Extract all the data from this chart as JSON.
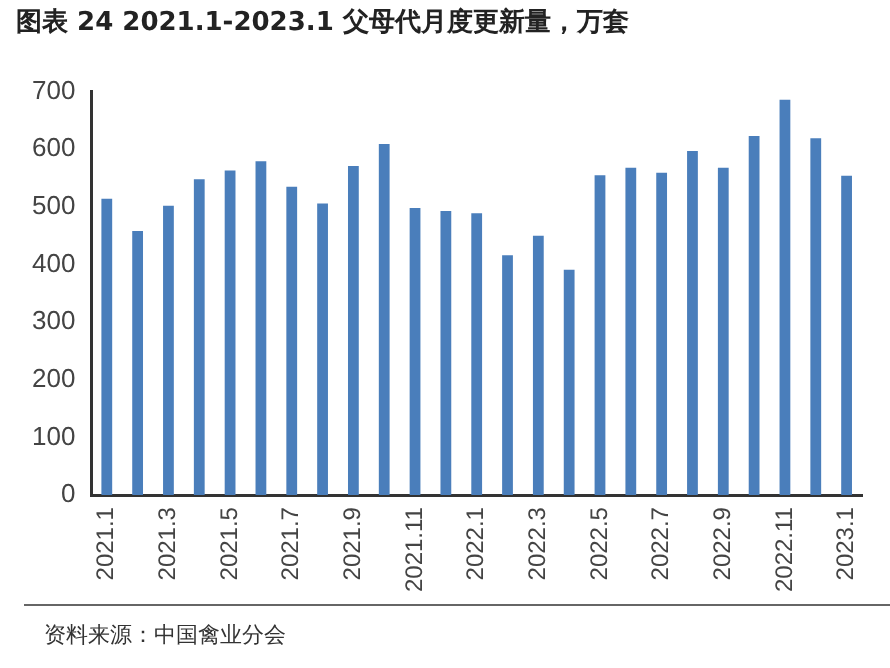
{
  "chart_data": {
    "type": "bar",
    "title": "图表 24 2021.1-2023.1 父母代月度更新量，万套",
    "categories": [
      "2021.1",
      null,
      "2021.3",
      null,
      "2021.5",
      null,
      "2021.7",
      null,
      "2021.9",
      null,
      "2021.11",
      null,
      "2022.1",
      null,
      "2022.3",
      null,
      "2022.5",
      null,
      "2022.7",
      null,
      "2022.9",
      null,
      "2022.11",
      null,
      "2023.1"
    ],
    "values": [
      514,
      458,
      502,
      548,
      563,
      579,
      535,
      506,
      571,
      609,
      498,
      493,
      489,
      416,
      450,
      391,
      555,
      568,
      559,
      597,
      568,
      623,
      686,
      619,
      554
    ],
    "color": "#4a7ebb",
    "ylim": [
      0,
      700
    ],
    "yticks": [
      0,
      100,
      200,
      300,
      400,
      500,
      600,
      700
    ],
    "annotations": [
      "资料来源：中国禽业分会"
    ]
  }
}
